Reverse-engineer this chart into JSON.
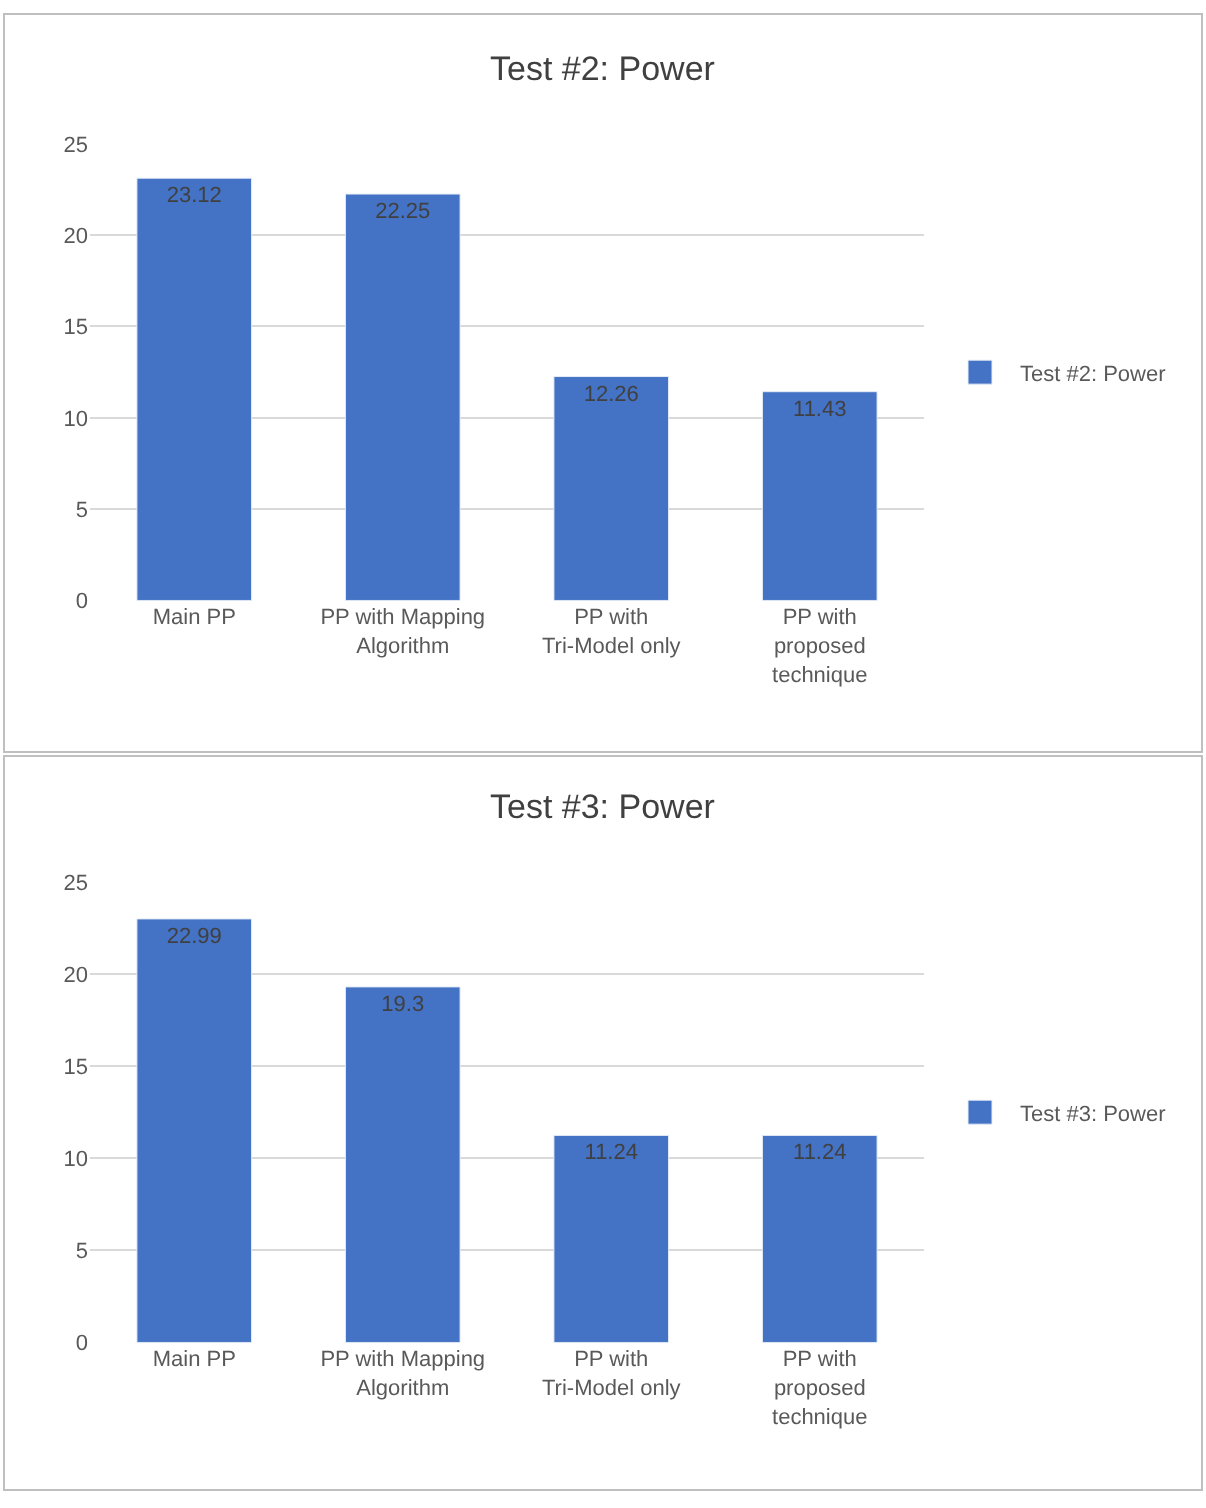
{
  "chart_data": [
    {
      "type": "bar",
      "title": "Test #2: Power",
      "categories": [
        "Main PP",
        "PP with Mapping Algorithm",
        "PP with Tri-Model only",
        "PP with proposed technique"
      ],
      "series": [
        {
          "name": "Test #2: Power",
          "color": "#4472c4",
          "values": [
            23.12,
            22.25,
            12.26,
            11.43
          ]
        }
      ],
      "ylim": [
        0,
        25
      ],
      "yticks": [
        0,
        5,
        10,
        15,
        20,
        25
      ],
      "grid": "y",
      "legend": "right",
      "data_labels": true
    },
    {
      "type": "bar",
      "title": "Test #3: Power",
      "categories": [
        "Main PP",
        "PP with Mapping Algorithm",
        "PP with Tri-Model only",
        "PP with proposed technique"
      ],
      "series": [
        {
          "name": "Test #3: Power",
          "color": "#4472c4",
          "values": [
            22.99,
            19.3,
            11.24,
            11.24
          ]
        }
      ],
      "ylim": [
        0,
        25
      ],
      "yticks": [
        0,
        5,
        10,
        15,
        20,
        25
      ],
      "grid": "y",
      "legend": "right",
      "data_labels": true
    }
  ]
}
